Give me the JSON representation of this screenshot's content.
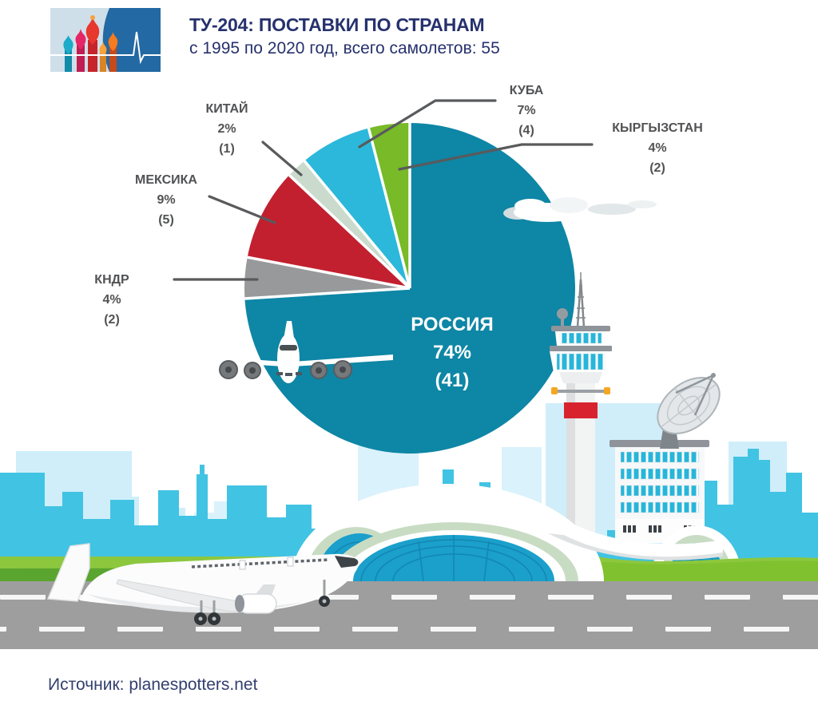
{
  "header": {
    "title": "ТУ-204: ПОСТАВКИ ПО СТРАНАМ",
    "subtitle": "с 1995 по 2020 год, всего самолетов: 55"
  },
  "chart_data": {
    "type": "pie",
    "title": "ТУ-204: поставки по странам",
    "subtitle": "с 1995 по 2020 год, всего самолетов: 55",
    "total_aircraft": 55,
    "start_angle_deg": 90,
    "direction": "ccw",
    "slices": [
      {
        "label": "КЫРГЫЗСТАН",
        "percent": "4%",
        "count": "(2)",
        "value": 4,
        "aircraft": 2,
        "color": "#78ba27"
      },
      {
        "label": "КУБА",
        "percent": "7%",
        "count": "(4)",
        "value": 7,
        "aircraft": 4,
        "color": "#2bb8da"
      },
      {
        "label": "КИТАЙ",
        "percent": "2%",
        "count": "(1)",
        "value": 2,
        "aircraft": 1,
        "color": "#cadbce"
      },
      {
        "label": "МЕКСИКА",
        "percent": "9%",
        "count": "(5)",
        "value": 9,
        "aircraft": 5,
        "color": "#c2202f"
      },
      {
        "label": "КНДР",
        "percent": "4%",
        "count": "(2)",
        "value": 4,
        "aircraft": 2,
        "color": "#98999a"
      },
      {
        "label": "РОССИЯ",
        "percent": "74%",
        "count": "(41)",
        "value": 74,
        "aircraft": 41,
        "color": "#0e86a5"
      }
    ]
  },
  "footer": {
    "source": "Источник: planespotters.net"
  },
  "colors": {
    "accent_navy": "#26316d",
    "label_gray": "#515254",
    "leader_line": "#595a5c",
    "sky_back": "#cfeef9",
    "sky_front": "#41c3e3",
    "grass": "#7fc12e",
    "road": "#9e9e9e",
    "glass_blue": "#1b9fcb",
    "tower_red": "#d8232f"
  }
}
